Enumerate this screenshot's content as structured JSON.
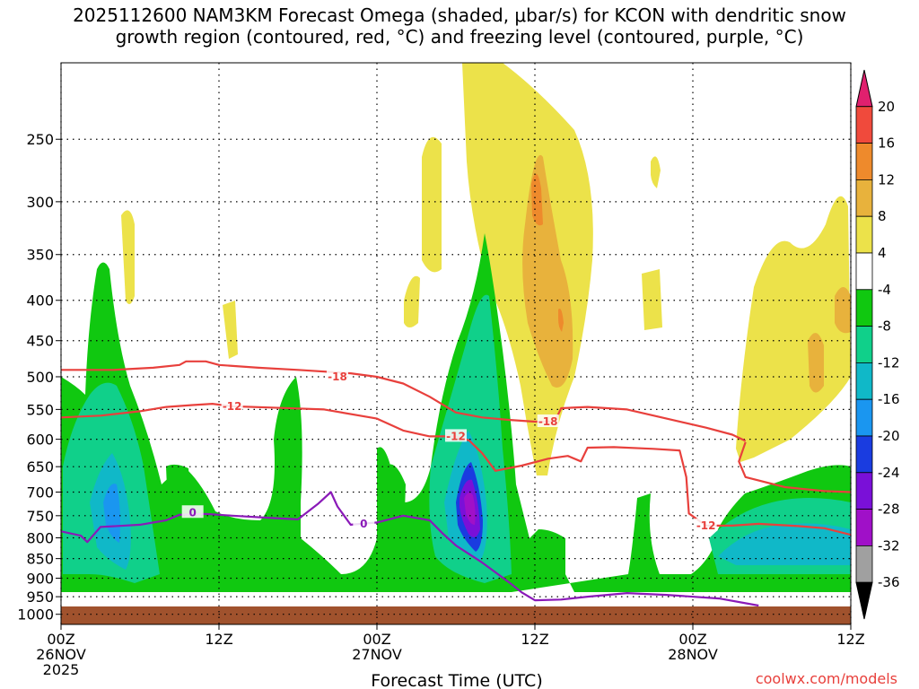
{
  "chart_data": {
    "type": "heatmap",
    "title_line1": "2025112600 NAM3KM Forecast Omega (shaded, μbar/s) for KCON with dendritic snow",
    "title_line2": "growth region (contoured, red, °C) and freezing level (contoured, purple, °C)",
    "xlabel": "Forecast Time (UTC)",
    "credit": "coolwx.com/models",
    "x_ticks": [
      {
        "hour": 0,
        "line1": "00Z",
        "line2": "26NOV",
        "line3": "2025"
      },
      {
        "hour": 12,
        "line1": "12Z",
        "line2": "",
        "line3": ""
      },
      {
        "hour": 24,
        "line1": "00Z",
        "line2": "27NOV",
        "line3": ""
      },
      {
        "hour": 36,
        "line1": "12Z",
        "line2": "",
        "line3": ""
      },
      {
        "hour": 48,
        "line1": "00Z",
        "line2": "28NOV",
        "line3": ""
      },
      {
        "hour": 60,
        "line1": "12Z",
        "line2": "",
        "line3": ""
      }
    ],
    "xlim": [
      0,
      60
    ],
    "y_ticks": [
      250,
      300,
      350,
      400,
      450,
      500,
      550,
      600,
      650,
      700,
      750,
      800,
      850,
      900,
      950,
      1000
    ],
    "ylim": [
      1030,
      200
    ],
    "colorbar": {
      "labels": [
        "20",
        "16",
        "12",
        "8",
        "4",
        "-4",
        "-8",
        "-12",
        "-16",
        "-20",
        "-24",
        "-28",
        "-32",
        "-36"
      ],
      "colors": [
        "#e0206e",
        "#f04a3c",
        "#ee8a2c",
        "#e8b23c",
        "#ece24a",
        "#ffffff",
        "#10c810",
        "#10d08a",
        "#10b8c8",
        "#1a96f0",
        "#1a3ce0",
        "#7a10d8",
        "#a010c8",
        "#a0a0a0",
        "#000000"
      ]
    },
    "contours": [
      {
        "name": "-18",
        "color": "#e8403c",
        "label_text": "-18",
        "label_points": [
          [
            21,
            500
          ],
          [
            37,
            570
          ]
        ],
        "points": [
          [
            0,
            490
          ],
          [
            4,
            490
          ],
          [
            7,
            487
          ],
          [
            9,
            483
          ],
          [
            9.5,
            478
          ],
          [
            11,
            478
          ],
          [
            12,
            483
          ],
          [
            15,
            487
          ],
          [
            18,
            490
          ],
          [
            22,
            495
          ],
          [
            24,
            500
          ],
          [
            26,
            510
          ],
          [
            28,
            530
          ],
          [
            30,
            555
          ],
          [
            32,
            563
          ],
          [
            34,
            567
          ],
          [
            36,
            570
          ],
          [
            37.5,
            570
          ],
          [
            38,
            548
          ],
          [
            40,
            546
          ],
          [
            43,
            550
          ],
          [
            46,
            565
          ],
          [
            49,
            580
          ],
          [
            51,
            592
          ],
          [
            52,
            603
          ]
        ]
      },
      {
        "name": "-12",
        "color": "#e8403c",
        "label_text": "-12",
        "label_points": [
          [
            13,
            545
          ],
          [
            30,
            595
          ],
          [
            49,
            772
          ]
        ],
        "points": [
          [
            0,
            563
          ],
          [
            3,
            560
          ],
          [
            6,
            553
          ],
          [
            8,
            546
          ],
          [
            10,
            543
          ],
          [
            11.5,
            541
          ],
          [
            13,
            545
          ],
          [
            16,
            547
          ],
          [
            20,
            550
          ],
          [
            24,
            565
          ],
          [
            26,
            585
          ],
          [
            28,
            595
          ],
          [
            30,
            595
          ],
          [
            31,
            602
          ],
          [
            32,
            625
          ],
          [
            33,
            658
          ],
          [
            35,
            648
          ],
          [
            37,
            635
          ],
          [
            38.5,
            630
          ],
          [
            39.5,
            640
          ],
          [
            40,
            615
          ],
          [
            42,
            614
          ],
          [
            45,
            617
          ],
          [
            47,
            620
          ],
          [
            47.5,
            670
          ],
          [
            47.7,
            745
          ],
          [
            49,
            772
          ],
          [
            51,
            772
          ],
          [
            53,
            768
          ],
          [
            56,
            773
          ],
          [
            58,
            778
          ],
          [
            60,
            793
          ]
        ]
      },
      {
        "name": "-12b",
        "color": "#e8403c",
        "label_text": "",
        "label_points": [],
        "points": [
          [
            52,
            605
          ],
          [
            51.5,
            640
          ],
          [
            52,
            670
          ],
          [
            55,
            690
          ],
          [
            58,
            698
          ],
          [
            60,
            700
          ]
        ]
      },
      {
        "name": "0",
        "color": "#8a1ab8",
        "label_text": "0",
        "label_points": [
          [
            10,
            743
          ],
          [
            23,
            768
          ]
        ],
        "points": [
          [
            0,
            785
          ],
          [
            1.5,
            795
          ],
          [
            2,
            810
          ],
          [
            3,
            775
          ],
          [
            6,
            770
          ],
          [
            8,
            760
          ],
          [
            9,
            748
          ],
          [
            11,
            746
          ],
          [
            13,
            750
          ],
          [
            16,
            755
          ],
          [
            18,
            758
          ],
          [
            19.5,
            725
          ],
          [
            20.5,
            700
          ],
          [
            21,
            730
          ],
          [
            22,
            770
          ],
          [
            24,
            765
          ],
          [
            26,
            750
          ],
          [
            28,
            760
          ],
          [
            29,
            790
          ],
          [
            30,
            818
          ],
          [
            32,
            860
          ],
          [
            34,
            910
          ],
          [
            35,
            938
          ],
          [
            36,
            960
          ],
          [
            38,
            958
          ],
          [
            40,
            950
          ],
          [
            43,
            940
          ],
          [
            46,
            945
          ],
          [
            50,
            955
          ],
          [
            53,
            975
          ]
        ]
      }
    ]
  }
}
